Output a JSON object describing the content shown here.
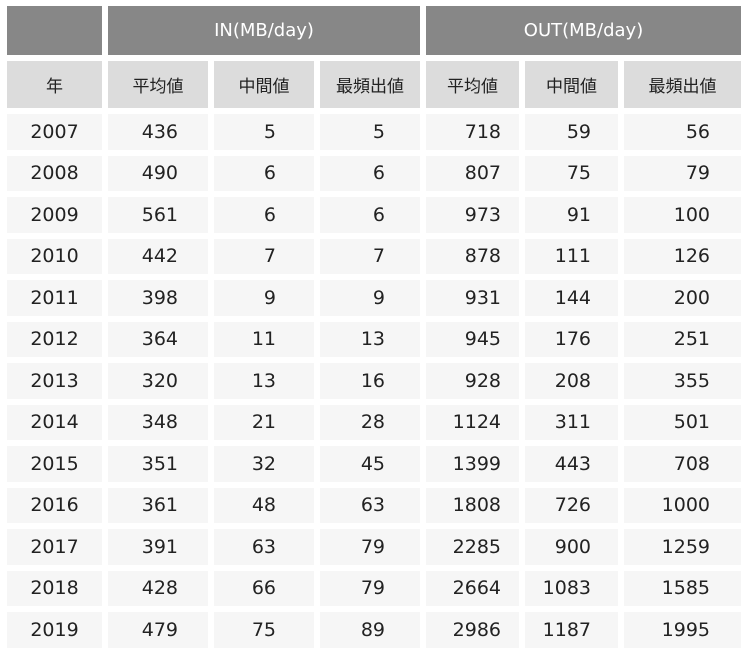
{
  "chart_data": {
    "type": "table",
    "group_headers": [
      "IN(MB/day)",
      "OUT(MB/day)"
    ],
    "columns": [
      "年",
      "平均値",
      "中間値",
      "最頻出値",
      "平均値",
      "中間値",
      "最頻出値"
    ],
    "rows": [
      [
        "2007",
        "436",
        "5",
        "5",
        "718",
        "59",
        "56"
      ],
      [
        "2008",
        "490",
        "6",
        "6",
        "807",
        "75",
        "79"
      ],
      [
        "2009",
        "561",
        "6",
        "6",
        "973",
        "91",
        "100"
      ],
      [
        "2010",
        "442",
        "7",
        "7",
        "878",
        "111",
        "126"
      ],
      [
        "2011",
        "398",
        "9",
        "9",
        "931",
        "144",
        "200"
      ],
      [
        "2012",
        "364",
        "11",
        "13",
        "945",
        "176",
        "251"
      ],
      [
        "2013",
        "320",
        "13",
        "16",
        "928",
        "208",
        "355"
      ],
      [
        "2014",
        "348",
        "21",
        "28",
        "1124",
        "311",
        "501"
      ],
      [
        "2015",
        "351",
        "32",
        "45",
        "1399",
        "443",
        "708"
      ],
      [
        "2016",
        "361",
        "48",
        "63",
        "1808",
        "726",
        "1000"
      ],
      [
        "2017",
        "391",
        "63",
        "79",
        "2285",
        "900",
        "1259"
      ],
      [
        "2018",
        "428",
        "66",
        "79",
        "2664",
        "1083",
        "1585"
      ],
      [
        "2019",
        "479",
        "75",
        "89",
        "2986",
        "1187",
        "1995"
      ]
    ]
  },
  "colors": {
    "group_header_bg": "#878787",
    "column_header_bg": "#dcdcdc",
    "row_bg": "#f6f6f6"
  }
}
